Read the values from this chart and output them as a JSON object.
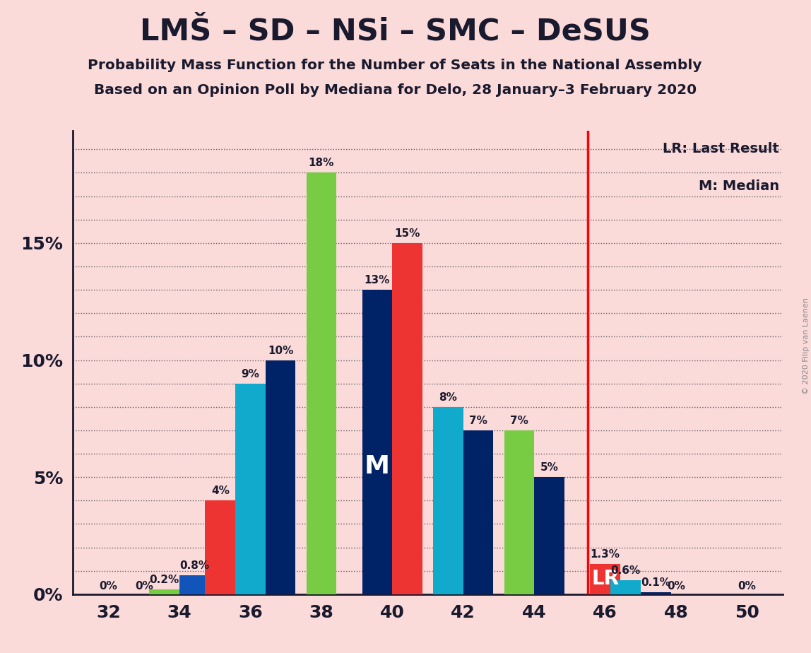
{
  "title": "LMŠ – SD – NSi – SMC – DeSUS",
  "subtitle1": "Probability Mass Function for the Number of Seats in the National Assembly",
  "subtitle2": "Based on an Opinion Poll by Mediana for Delo, 28 January–3 February 2020",
  "copyright": "© 2020 Filip van Laenen",
  "background_color": "#FBDADA",
  "bar_data": [
    {
      "seat": 34,
      "bars": [
        {
          "value": 0.2,
          "color": "#77CC44",
          "label": "0.2%",
          "label_color": "#1a1a2e",
          "median": false,
          "lr": false
        },
        {
          "value": 0.8,
          "color": "#1155BB",
          "label": "0.8%",
          "label_color": "#1a1a2e",
          "median": false,
          "lr": false
        }
      ]
    },
    {
      "seat": 36,
      "bars": [
        {
          "value": 4.0,
          "color": "#EE3333",
          "label": "4%",
          "label_color": "#1a1a2e",
          "median": false,
          "lr": false
        },
        {
          "value": 9.0,
          "color": "#11AACC",
          "label": "9%",
          "label_color": "#1a1a2e",
          "median": false,
          "lr": false
        },
        {
          "value": 10.0,
          "color": "#002266",
          "label": "10%",
          "label_color": "#1a1a2e",
          "median": false,
          "lr": false
        }
      ]
    },
    {
      "seat": 38,
      "bars": [
        {
          "value": 18.0,
          "color": "#77CC44",
          "label": "18%",
          "label_color": "#1a1a2e",
          "median": false,
          "lr": false
        }
      ]
    },
    {
      "seat": 40,
      "bars": [
        {
          "value": 13.0,
          "color": "#002266",
          "label": "13%",
          "label_color": "#1a1a2e",
          "median": true,
          "lr": false
        },
        {
          "value": 15.0,
          "color": "#EE3333",
          "label": "15%",
          "label_color": "#1a1a2e",
          "median": false,
          "lr": false
        }
      ]
    },
    {
      "seat": 42,
      "bars": [
        {
          "value": 8.0,
          "color": "#11AACC",
          "label": "8%",
          "label_color": "#1a1a2e",
          "median": false,
          "lr": false
        },
        {
          "value": 7.0,
          "color": "#002266",
          "label": "7%",
          "label_color": "#1a1a2e",
          "median": false,
          "lr": false
        }
      ]
    },
    {
      "seat": 44,
      "bars": [
        {
          "value": 7.0,
          "color": "#77CC44",
          "label": "7%",
          "label_color": "#1a1a2e",
          "median": false,
          "lr": false
        },
        {
          "value": 5.0,
          "color": "#002266",
          "label": "5%",
          "label_color": "#1a1a2e",
          "median": false,
          "lr": false
        }
      ]
    },
    {
      "seat": 46,
      "bars": [
        {
          "value": 1.3,
          "color": "#EE3333",
          "label": "1.3%",
          "label_color": "#1a1a2e",
          "median": false,
          "lr": true
        }
      ]
    },
    {
      "seat": 47,
      "bars": [
        {
          "value": 0.6,
          "color": "#11AACC",
          "label": "0.6%",
          "label_color": "#1a1a2e",
          "median": false,
          "lr": false
        },
        {
          "value": 0.1,
          "color": "#002266",
          "label": "0.1%",
          "label_color": "#1a1a2e",
          "median": false,
          "lr": false
        }
      ]
    }
  ],
  "zero_label_seats": [
    32,
    33,
    48,
    50
  ],
  "lr_line_x": 45.5,
  "xlim": [
    31.0,
    51.0
  ],
  "ylim": [
    0,
    19.8
  ],
  "yticks": [
    0,
    5,
    10,
    15
  ],
  "ylabel_ticks": [
    "0%",
    "5%",
    "10%",
    "15%"
  ],
  "xticks": [
    32,
    34,
    36,
    38,
    40,
    42,
    44,
    46,
    48,
    50
  ],
  "legend_lr": "LR: Last Result",
  "legend_m": "M: Median"
}
